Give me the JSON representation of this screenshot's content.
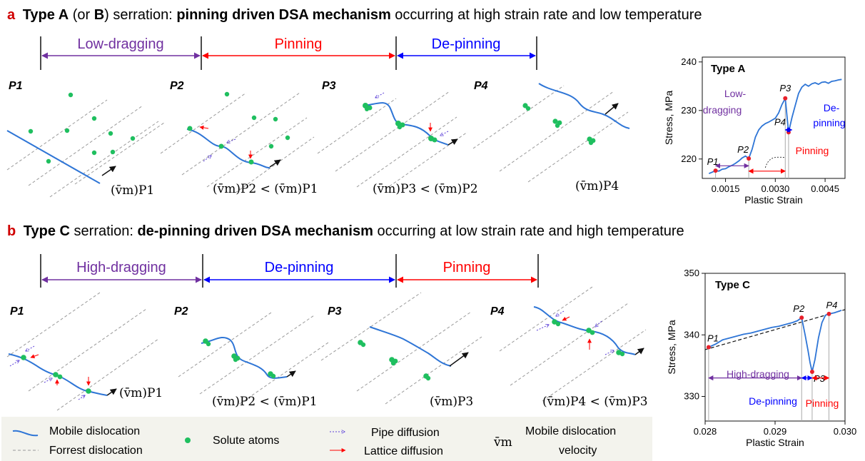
{
  "section_a": {
    "letter": "a",
    "title_parts": [
      "Type A",
      " (or ",
      "B",
      ") serration: ",
      "pinning driven DSA mechanism",
      " occurring at high strain rate and low temperature"
    ],
    "phases": [
      "Low-dragging",
      "Pinning",
      "De-pinning"
    ],
    "panels": [
      "P1",
      "P2",
      "P3",
      "P4"
    ],
    "velocity_labels": [
      "(v̄m)P1",
      "(v̄m)P2 < (v̄m)P1",
      "(v̄m)P3 < (v̄m)P2",
      "(v̄m)P4"
    ]
  },
  "section_b": {
    "letter": "b",
    "title_parts": [
      "Type C",
      " serration: ",
      "de-pinning driven DSA mechanism",
      " occurring at low strain rate and high temperature"
    ],
    "phases": [
      "High-dragging",
      "De-pinning",
      "Pinning"
    ],
    "panels": [
      "P1",
      "P2",
      "P3",
      "P4"
    ],
    "velocity_labels": [
      "(v̄m)P1",
      "(v̄m)P2 < (v̄m)P1",
      "(v̄m)P3",
      "(v̄m)P4 < (v̄m)P3"
    ]
  },
  "legend": {
    "mobile": "Mobile dislocation",
    "forrest": "Forrest dislocation",
    "solute": "Solute atoms",
    "pipe": "Pipe diffusion",
    "lattice": "Lattice diffusion",
    "vm_symbol": "v̄m",
    "vm_text_1": "Mobile dislocation",
    "vm_text_2": "velocity"
  },
  "colors": {
    "purple": "#7030a0",
    "red": "#ff0000",
    "blue": "#0000ff",
    "line_blue": "#2e75d6",
    "green": "#1fbf5f",
    "gray": "#999999",
    "point_red": "#e8202a"
  },
  "chart_data": [
    {
      "type": "line",
      "title": "Type A",
      "xlabel": "Plastic Strain",
      "ylabel": "Stress, MPa",
      "xlim": [
        0.0008,
        0.0051
      ],
      "ylim": [
        216,
        241
      ],
      "xticks": [
        "0.0015",
        "0.0030",
        "0.0045"
      ],
      "yticks": [
        "220",
        "230",
        "240"
      ],
      "x": [
        0.001,
        0.0011,
        0.0012,
        0.0013,
        0.0014,
        0.0015,
        0.0016,
        0.0017,
        0.0018,
        0.0019,
        0.002,
        0.0021,
        0.0022,
        0.0023,
        0.0024,
        0.0025,
        0.0026,
        0.0027,
        0.0028,
        0.0029,
        0.003,
        0.0031,
        0.0032,
        0.0033,
        0.0034,
        0.0035,
        0.0036,
        0.0037,
        0.0038,
        0.0039,
        0.004,
        0.0041,
        0.0042,
        0.0043,
        0.0044,
        0.0045,
        0.0046,
        0.0047,
        0.0048,
        0.0049,
        0.005
      ],
      "y": [
        217.0,
        217.3,
        217.6,
        217.5,
        217.9,
        218.0,
        218.4,
        218.7,
        219.1,
        219.6,
        220.2,
        220.6,
        220.1,
        222.0,
        224.5,
        226.0,
        226.8,
        227.3,
        227.6,
        228.0,
        228.4,
        229.5,
        231.2,
        232.5,
        225.5,
        228.5,
        231.0,
        233.5,
        234.8,
        235.4,
        235.0,
        235.5,
        235.7,
        235.4,
        235.8,
        235.9,
        235.6,
        236.0,
        236.1,
        236.3,
        236.4
      ],
      "points": [
        {
          "label": "P1",
          "x": 0.0012,
          "y": 217.6
        },
        {
          "label": "P2",
          "x": 0.0022,
          "y": 220.1
        },
        {
          "label": "P3",
          "x": 0.0033,
          "y": 232.5
        },
        {
          "label": "P4",
          "x": 0.0034,
          "y": 225.5
        }
      ],
      "annotations": [
        "Low-",
        "dragging",
        "Pinning",
        "De-",
        "pinning"
      ]
    },
    {
      "type": "line",
      "title": "Type C",
      "xlabel": "Plastic Strain",
      "ylabel": "Stress, MPa",
      "xlim": [
        0.028,
        0.03
      ],
      "ylim": [
        326,
        350
      ],
      "xticks": [
        "0.028",
        "0.029",
        "0.030"
      ],
      "yticks": [
        "330",
        "340",
        "350"
      ],
      "x": [
        0.02805,
        0.02815,
        0.02825,
        0.02835,
        0.02845,
        0.02855,
        0.02865,
        0.02875,
        0.02885,
        0.02895,
        0.02905,
        0.02915,
        0.02925,
        0.02932,
        0.02938,
        0.02943,
        0.02947,
        0.0295,
        0.02953,
        0.02957,
        0.02962,
        0.02967,
        0.02972,
        0.02977,
        0.02985,
        0.02995
      ],
      "y": [
        338.0,
        338.5,
        339.2,
        339.5,
        339.8,
        340.1,
        340.3,
        340.6,
        340.9,
        341.2,
        341.4,
        341.7,
        342.0,
        342.3,
        342.8,
        340.0,
        337.5,
        335.5,
        334.0,
        336.0,
        339.5,
        342.0,
        343.2,
        343.4,
        343.6,
        344.0
      ],
      "trend": {
        "x": [
          0.028,
          0.03
        ],
        "y": [
          337.6,
          344.1
        ]
      },
      "points": [
        {
          "label": "P1",
          "x": 0.02805,
          "y": 338.0
        },
        {
          "label": "P2",
          "x": 0.02938,
          "y": 342.8
        },
        {
          "label": "P3",
          "x": 0.02953,
          "y": 334.0
        },
        {
          "label": "P4",
          "x": 0.02977,
          "y": 343.4
        }
      ],
      "annotations": [
        "High-dragging",
        "De-pinning",
        "Pinning"
      ]
    }
  ]
}
